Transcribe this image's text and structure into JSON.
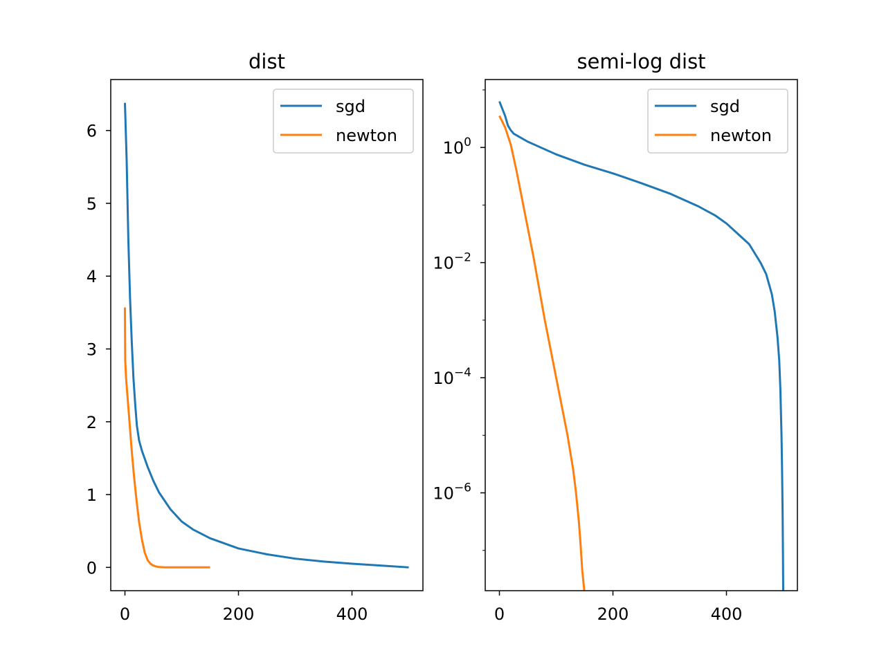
{
  "chart_data": [
    {
      "type": "line",
      "title": "dist",
      "xlabel": "",
      "ylabel": "",
      "xlim": [
        -25,
        525
      ],
      "ylim": [
        -0.32,
        6.7
      ],
      "yscale": "linear",
      "grid": false,
      "legend_position": "top-right",
      "xticks": [
        0,
        200,
        400
      ],
      "xtick_labels": [
        "0",
        "200",
        "400"
      ],
      "yticks": [
        0,
        1,
        2,
        3,
        4,
        5,
        6
      ],
      "ytick_labels": [
        "0",
        "1",
        "2",
        "3",
        "4",
        "5",
        "6"
      ],
      "series": [
        {
          "name": "sgd",
          "color": "#1f77b4",
          "x": [
            0,
            3,
            6,
            9,
            12,
            15,
            18,
            21,
            25,
            30,
            40,
            50,
            60,
            80,
            100,
            120,
            150,
            200,
            250,
            300,
            350,
            400,
            450,
            500
          ],
          "y": [
            6.38,
            5.6,
            4.5,
            3.7,
            3.1,
            2.6,
            2.25,
            1.95,
            1.74,
            1.6,
            1.38,
            1.19,
            1.03,
            0.8,
            0.63,
            0.52,
            0.4,
            0.26,
            0.18,
            0.12,
            0.08,
            0.05,
            0.025,
            0.0
          ]
        },
        {
          "name": "newton",
          "color": "#ff7f0e",
          "x": [
            0,
            0.5,
            2,
            5,
            8,
            12,
            16,
            20,
            25,
            30,
            35,
            40,
            45,
            50,
            55,
            60,
            70,
            80,
            100,
            120,
            150
          ],
          "y": [
            3.57,
            2.85,
            2.6,
            2.3,
            2.0,
            1.6,
            1.25,
            0.95,
            0.62,
            0.38,
            0.2,
            0.1,
            0.05,
            0.025,
            0.012,
            0.005,
            0.001,
            0.0,
            0.0,
            0.0,
            0.0
          ]
        }
      ]
    },
    {
      "type": "line",
      "title": "semi-log dist",
      "xlabel": "",
      "ylabel": "",
      "xlim": [
        -25,
        525
      ],
      "ylim_log10": [
        -7.7,
        1.18
      ],
      "yscale": "log",
      "grid": false,
      "legend_position": "top-right",
      "xticks": [
        0,
        200,
        400
      ],
      "xtick_labels": [
        "0",
        "200",
        "400"
      ],
      "yticks_log10": [
        0,
        -2,
        -4,
        -6
      ],
      "ytick_base": "10",
      "ytick_exponents": [
        "0",
        "−2",
        "−4",
        "−6"
      ],
      "series": [
        {
          "name": "sgd",
          "color": "#1f77b4",
          "x": [
            0,
            10,
            15,
            20,
            25,
            50,
            100,
            150,
            200,
            250,
            300,
            350,
            380,
            400,
            420,
            440,
            460,
            470,
            480,
            485,
            490,
            493,
            495,
            497,
            498,
            499,
            499.5,
            500
          ],
          "log10_y": [
            0.8,
            0.55,
            0.38,
            0.3,
            0.24,
            0.1,
            -0.12,
            -0.3,
            -0.45,
            -0.62,
            -0.8,
            -1.02,
            -1.18,
            -1.32,
            -1.5,
            -1.68,
            -2.0,
            -2.2,
            -2.55,
            -2.85,
            -3.3,
            -3.7,
            -4.2,
            -5.0,
            -5.6,
            -6.4,
            -7.0,
            -7.7
          ]
        },
        {
          "name": "newton",
          "color": "#ff7f0e",
          "x": [
            0,
            5,
            10,
            15,
            20,
            30,
            40,
            60,
            80,
            100,
            110,
            120,
            130,
            135,
            140,
            143,
            145,
            146,
            147,
            148,
            149,
            149.5,
            150
          ],
          "log10_y": [
            0.55,
            0.45,
            0.35,
            0.2,
            0.05,
            -0.4,
            -0.9,
            -1.9,
            -3.0,
            -4.0,
            -4.5,
            -5.0,
            -5.6,
            -6.0,
            -6.5,
            -6.9,
            -7.2,
            -7.35,
            -7.45,
            -7.55,
            -7.65,
            -7.7,
            -7.7
          ]
        }
      ]
    }
  ]
}
